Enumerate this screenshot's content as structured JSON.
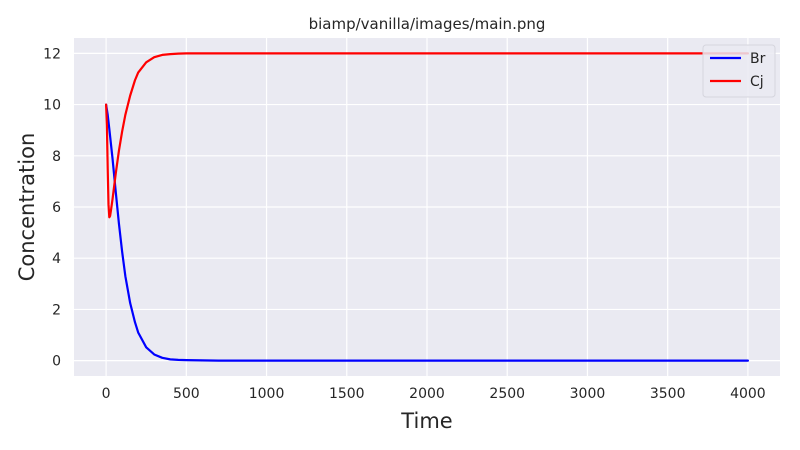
{
  "chart_data": {
    "type": "line",
    "title": "biamp/vanilla/images/main.png",
    "xlabel": "Time",
    "ylabel": "Concentration",
    "xlim": [
      -200,
      4200
    ],
    "ylim": [
      -0.6,
      12.6
    ],
    "xticks": [
      0,
      500,
      1000,
      1500,
      2000,
      2500,
      3000,
      3500,
      4000
    ],
    "yticks": [
      0,
      2,
      4,
      6,
      8,
      10,
      12
    ],
    "grid": true,
    "legend_position": "top-right",
    "series": [
      {
        "name": "Br",
        "color": "#0000ff",
        "x": [
          0,
          10,
          20,
          40,
          60,
          80,
          100,
          120,
          150,
          180,
          200,
          250,
          300,
          350,
          400,
          450,
          500,
          600,
          700,
          800,
          1000,
          1500,
          2000,
          2500,
          3000,
          3500,
          4000
        ],
        "y": [
          10.0,
          9.6,
          9.05,
          7.9,
          6.6,
          5.35,
          4.25,
          3.3,
          2.25,
          1.5,
          1.1,
          0.52,
          0.24,
          0.11,
          0.05,
          0.03,
          0.02,
          0.01,
          0.0,
          0.0,
          0.0,
          0.0,
          0.0,
          0.0,
          0.0,
          0.0,
          0.0
        ]
      },
      {
        "name": "Cj",
        "color": "#ff0000",
        "x": [
          0,
          5,
          10,
          15,
          20,
          25,
          30,
          40,
          50,
          60,
          80,
          100,
          120,
          150,
          180,
          200,
          250,
          300,
          350,
          400,
          450,
          500,
          600,
          700,
          800,
          1000,
          1500,
          2000,
          2500,
          3000,
          3500,
          4000
        ],
        "y": [
          10.0,
          9.2,
          7.5,
          6.1,
          5.6,
          5.65,
          5.85,
          6.3,
          6.8,
          7.3,
          8.2,
          8.95,
          9.6,
          10.35,
          10.95,
          11.25,
          11.65,
          11.85,
          11.94,
          11.97,
          11.99,
          12.0,
          12.0,
          12.0,
          12.0,
          12.0,
          12.0,
          12.0,
          12.0,
          12.0,
          12.0,
          12.0
        ]
      }
    ]
  }
}
